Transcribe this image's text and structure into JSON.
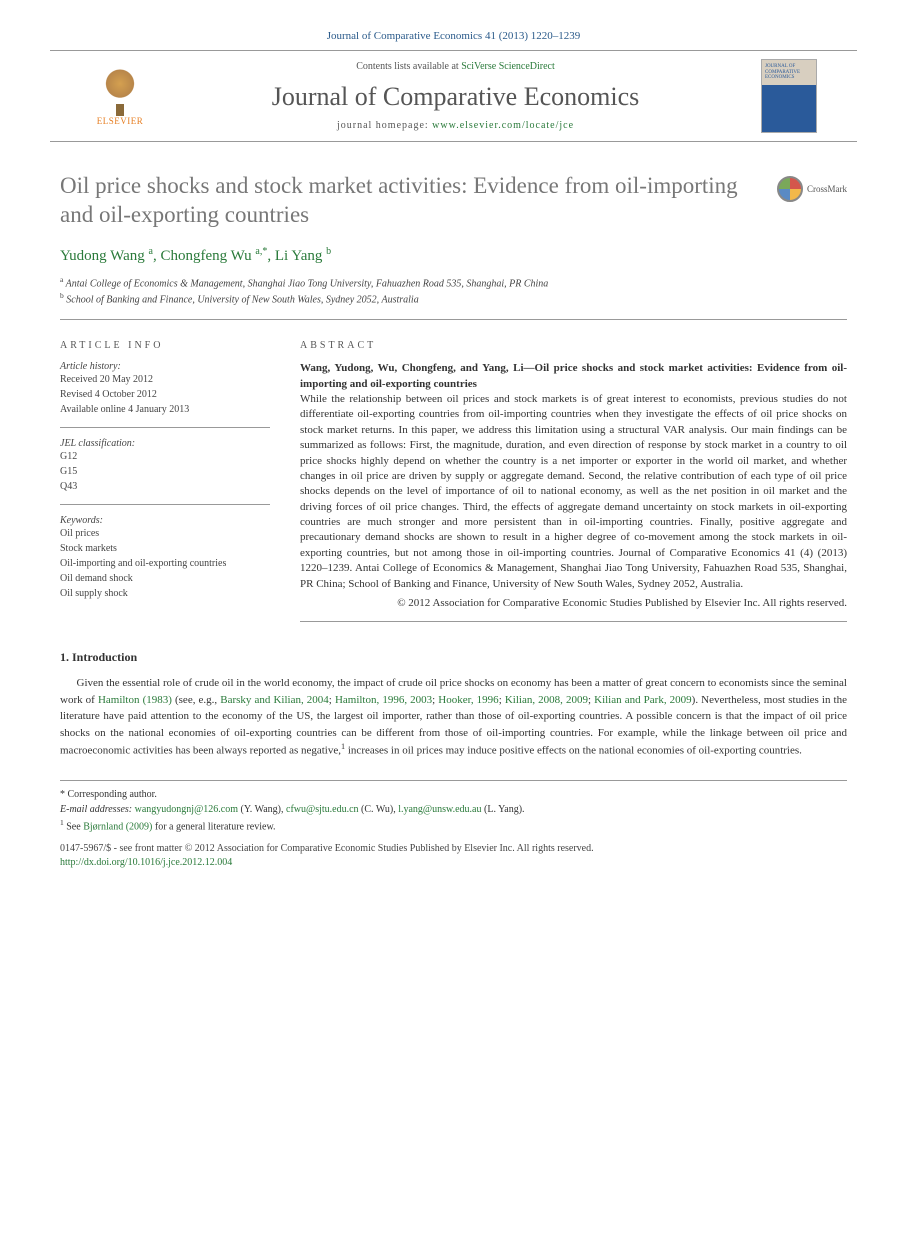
{
  "header": {
    "citation": "Journal of Comparative Economics 41 (2013) 1220–1239"
  },
  "banner": {
    "publisher": "ELSEVIER",
    "contents_prefix": "Contents lists available at ",
    "contents_link": "SciVerse ScienceDirect",
    "journal_name": "Journal of Comparative Economics",
    "homepage_prefix": "journal homepage: ",
    "homepage_link": "www.elsevier.com/locate/jce",
    "cover_text": "JOURNAL OF COMPARATIVE ECONOMICS"
  },
  "article": {
    "title": "Oil price shocks and stock market activities: Evidence from oil-importing and oil-exporting countries",
    "crossmark_label": "CrossMark",
    "authors_html": "Yudong Wang <sup>a</sup>, Chongfeng Wu <sup>a,*</sup>, Li Yang <sup>b</sup>",
    "affiliations": [
      "a Antai College of Economics & Management, Shanghai Jiao Tong University, Fahuazhen Road 535, Shanghai, PR China",
      "b School of Banking and Finance, University of New South Wales, Sydney 2052, Australia"
    ]
  },
  "info": {
    "heading": "ARTICLE INFO",
    "history_label": "Article history:",
    "received": "Received 20 May 2012",
    "revised": "Revised 4 October 2012",
    "online": "Available online 4 January 2013",
    "jel_label": "JEL classification:",
    "jel_codes": [
      "G12",
      "G15",
      "Q43"
    ],
    "keywords_label": "Keywords:",
    "keywords": [
      "Oil prices",
      "Stock markets",
      "Oil-importing and oil-exporting countries",
      "Oil demand shock",
      "Oil supply shock"
    ]
  },
  "abstract": {
    "heading": "ABSTRACT",
    "lead": "Wang, Yudong, Wu, Chongfeng, and Yang, Li—Oil price shocks and stock market activities: Evidence from oil-importing and oil-exporting countries",
    "body": "While the relationship between oil prices and stock markets is of great interest to economists, previous studies do not differentiate oil-exporting countries from oil-importing countries when they investigate the effects of oil price shocks on stock market returns. In this paper, we address this limitation using a structural VAR analysis. Our main findings can be summarized as follows: First, the magnitude, duration, and even direction of response by stock market in a country to oil price shocks highly depend on whether the country is a net importer or exporter in the world oil market, and whether changes in oil price are driven by supply or aggregate demand. Second, the relative contribution of each type of oil price shocks depends on the level of importance of oil to national economy, as well as the net position in oil market and the driving forces of oil price changes. Third, the effects of aggregate demand uncertainty on stock markets in oil-exporting countries are much stronger and more persistent than in oil-importing countries. Finally, positive aggregate and precautionary demand shocks are shown to result in a higher degree of co-movement among the stock markets in oil-exporting countries, but not among those in oil-importing countries. Journal of Comparative Economics 41 (4) (2013) 1220–1239. Antai College of Economics & Management, Shanghai Jiao Tong University, Fahuazhen Road 535, Shanghai, PR China; School of Banking and Finance, University of New South Wales, Sydney 2052, Australia.",
    "copyright": "© 2012 Association for Comparative Economic Studies Published by Elsevier Inc. All rights reserved."
  },
  "intro": {
    "heading": "1. Introduction",
    "paragraph": "Given the essential role of crude oil in the world economy, the impact of crude oil price shocks on economy has been a matter of great concern to economists since the seminal work of Hamilton (1983) (see, e.g., Barsky and Kilian, 2004; Hamilton, 1996, 2003; Hooker, 1996; Kilian, 2008, 2009; Kilian and Park, 2009). Nevertheless, most studies in the literature have paid attention to the economy of the US, the largest oil importer, rather than those of oil-exporting countries. A possible concern is that the impact of oil price shocks on the national economies of oil-exporting countries can be different from those of oil-importing countries. For example, while the linkage between oil price and macroeconomic activities has been always reported as negative,1 increases in oil prices may induce positive effects on the national economies of oil-exporting countries.",
    "citations": [
      "Hamilton (1983)",
      "Barsky and Kilian, 2004",
      "Hamilton, 1996, 2003",
      "Hooker, 1996",
      "Kilian, 2008, 2009",
      "Kilian and Park, 2009"
    ]
  },
  "footnotes": {
    "corresponding": "* Corresponding author.",
    "emails_label": "E-mail addresses: ",
    "emails": [
      {
        "addr": "wangyudongnj@126.com",
        "who": "(Y. Wang)"
      },
      {
        "addr": "cfwu@sjtu.edu.cn",
        "who": "(C. Wu)"
      },
      {
        "addr": "l.yang@unsw.edu.au",
        "who": "(L. Yang)"
      }
    ],
    "note1": "1 See Bjørnland (2009) for a general literature review.",
    "note1_cite": "Bjørnland (2009)"
  },
  "footer": {
    "issn_line": "0147-5967/$ - see front matter © 2012 Association for Comparative Economic Studies Published by Elsevier Inc. All rights reserved.",
    "doi": "http://dx.doi.org/10.1016/j.jce.2012.12.004"
  },
  "colors": {
    "link_green": "#2a7a3a",
    "header_blue": "#2a5a8a",
    "title_gray": "#777777",
    "elsevier_orange": "#e67e22",
    "border_gray": "#999999"
  }
}
